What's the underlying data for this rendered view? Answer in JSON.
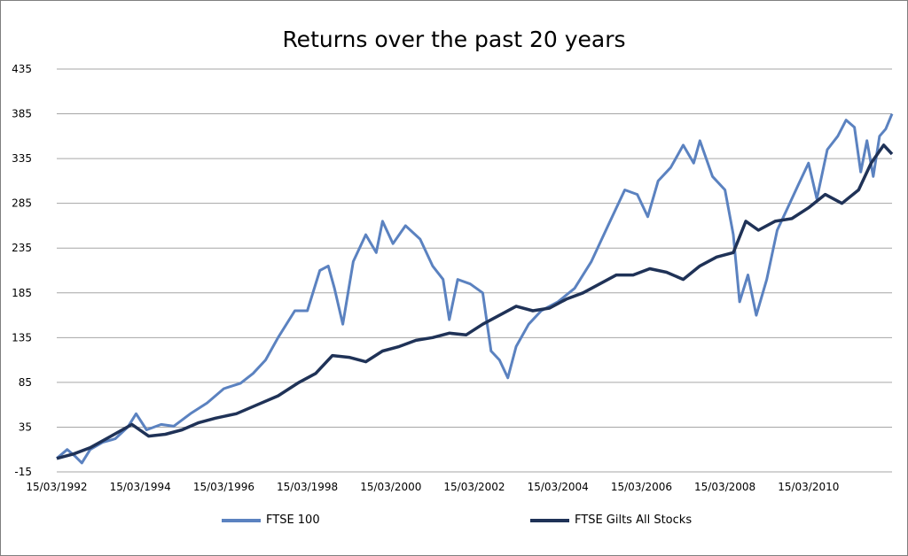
{
  "chart_data": {
    "type": "line",
    "title": "Returns over the past 20 years",
    "xlabel": "",
    "ylabel": "",
    "ylim": [
      -15,
      435
    ],
    "yticks": [
      -15,
      35,
      85,
      135,
      185,
      235,
      285,
      335,
      385,
      435
    ],
    "x_ticks": [
      "15/03/1992",
      "15/03/1994",
      "15/03/1996",
      "15/03/1998",
      "15/03/2000",
      "15/03/2002",
      "15/03/2004",
      "15/03/2006",
      "15/03/2008",
      "15/03/2010"
    ],
    "xlim": [
      1992.2,
      2012.2
    ],
    "grid": "horizontal",
    "legend": "bottom",
    "series": [
      {
        "name": "FTSE 100",
        "color": "#5b82c0",
        "points": [
          [
            1992.2,
            0
          ],
          [
            1992.45,
            10
          ],
          [
            1992.65,
            2
          ],
          [
            1992.8,
            -5
          ],
          [
            1993.0,
            10
          ],
          [
            1993.3,
            18
          ],
          [
            1993.6,
            22
          ],
          [
            1993.9,
            35
          ],
          [
            1994.1,
            50
          ],
          [
            1994.35,
            32
          ],
          [
            1994.7,
            38
          ],
          [
            1995.0,
            36
          ],
          [
            1995.4,
            50
          ],
          [
            1995.8,
            62
          ],
          [
            1996.2,
            78
          ],
          [
            1996.6,
            84
          ],
          [
            1996.9,
            95
          ],
          [
            1997.2,
            110
          ],
          [
            1997.5,
            135
          ],
          [
            1997.9,
            165
          ],
          [
            1998.2,
            165
          ],
          [
            1998.5,
            210
          ],
          [
            1998.7,
            215
          ],
          [
            1998.85,
            190
          ],
          [
            1999.05,
            150
          ],
          [
            1999.3,
            220
          ],
          [
            1999.6,
            250
          ],
          [
            1999.85,
            230
          ],
          [
            2000.0,
            265
          ],
          [
            2000.25,
            240
          ],
          [
            2000.55,
            260
          ],
          [
            2000.9,
            245
          ],
          [
            2001.2,
            215
          ],
          [
            2001.45,
            200
          ],
          [
            2001.6,
            155
          ],
          [
            2001.8,
            200
          ],
          [
            2002.1,
            195
          ],
          [
            2002.4,
            185
          ],
          [
            2002.6,
            120
          ],
          [
            2002.8,
            110
          ],
          [
            2003.0,
            90
          ],
          [
            2003.2,
            125
          ],
          [
            2003.5,
            150
          ],
          [
            2003.8,
            165
          ],
          [
            2004.2,
            175
          ],
          [
            2004.6,
            190
          ],
          [
            2005.0,
            220
          ],
          [
            2005.4,
            260
          ],
          [
            2005.8,
            300
          ],
          [
            2006.1,
            295
          ],
          [
            2006.35,
            270
          ],
          [
            2006.6,
            310
          ],
          [
            2006.9,
            325
          ],
          [
            2007.2,
            350
          ],
          [
            2007.45,
            330
          ],
          [
            2007.6,
            355
          ],
          [
            2007.9,
            315
          ],
          [
            2008.2,
            300
          ],
          [
            2008.4,
            250
          ],
          [
            2008.55,
            175
          ],
          [
            2008.75,
            205
          ],
          [
            2008.95,
            160
          ],
          [
            2009.2,
            200
          ],
          [
            2009.45,
            255
          ],
          [
            2009.7,
            280
          ],
          [
            2009.95,
            305
          ],
          [
            2010.2,
            330
          ],
          [
            2010.4,
            290
          ],
          [
            2010.65,
            345
          ],
          [
            2010.9,
            360
          ],
          [
            2011.1,
            378
          ],
          [
            2011.3,
            370
          ],
          [
            2011.45,
            320
          ],
          [
            2011.6,
            355
          ],
          [
            2011.75,
            315
          ],
          [
            2011.9,
            360
          ],
          [
            2012.05,
            368
          ],
          [
            2012.2,
            385
          ]
        ]
      },
      {
        "name": "FTSE Gilts All Stocks",
        "color": "#1f3257",
        "points": [
          [
            1992.2,
            0
          ],
          [
            1992.6,
            5
          ],
          [
            1993.0,
            12
          ],
          [
            1993.5,
            25
          ],
          [
            1994.0,
            38
          ],
          [
            1994.4,
            25
          ],
          [
            1994.8,
            27
          ],
          [
            1995.2,
            32
          ],
          [
            1995.6,
            40
          ],
          [
            1996.0,
            45
          ],
          [
            1996.5,
            50
          ],
          [
            1997.0,
            60
          ],
          [
            1997.5,
            70
          ],
          [
            1998.0,
            85
          ],
          [
            1998.4,
            95
          ],
          [
            1998.8,
            115
          ],
          [
            1999.2,
            113
          ],
          [
            1999.6,
            108
          ],
          [
            2000.0,
            120
          ],
          [
            2000.4,
            125
          ],
          [
            2000.8,
            132
          ],
          [
            2001.2,
            135
          ],
          [
            2001.6,
            140
          ],
          [
            2002.0,
            138
          ],
          [
            2002.4,
            150
          ],
          [
            2002.8,
            160
          ],
          [
            2003.2,
            170
          ],
          [
            2003.6,
            165
          ],
          [
            2004.0,
            168
          ],
          [
            2004.4,
            178
          ],
          [
            2004.8,
            185
          ],
          [
            2005.2,
            195
          ],
          [
            2005.6,
            205
          ],
          [
            2006.0,
            205
          ],
          [
            2006.4,
            212
          ],
          [
            2006.8,
            208
          ],
          [
            2007.2,
            200
          ],
          [
            2007.6,
            215
          ],
          [
            2008.0,
            225
          ],
          [
            2008.4,
            230
          ],
          [
            2008.7,
            265
          ],
          [
            2009.0,
            255
          ],
          [
            2009.4,
            265
          ],
          [
            2009.8,
            268
          ],
          [
            2010.2,
            280
          ],
          [
            2010.6,
            295
          ],
          [
            2011.0,
            285
          ],
          [
            2011.4,
            300
          ],
          [
            2011.7,
            330
          ],
          [
            2012.0,
            350
          ],
          [
            2012.2,
            340
          ]
        ]
      }
    ]
  }
}
